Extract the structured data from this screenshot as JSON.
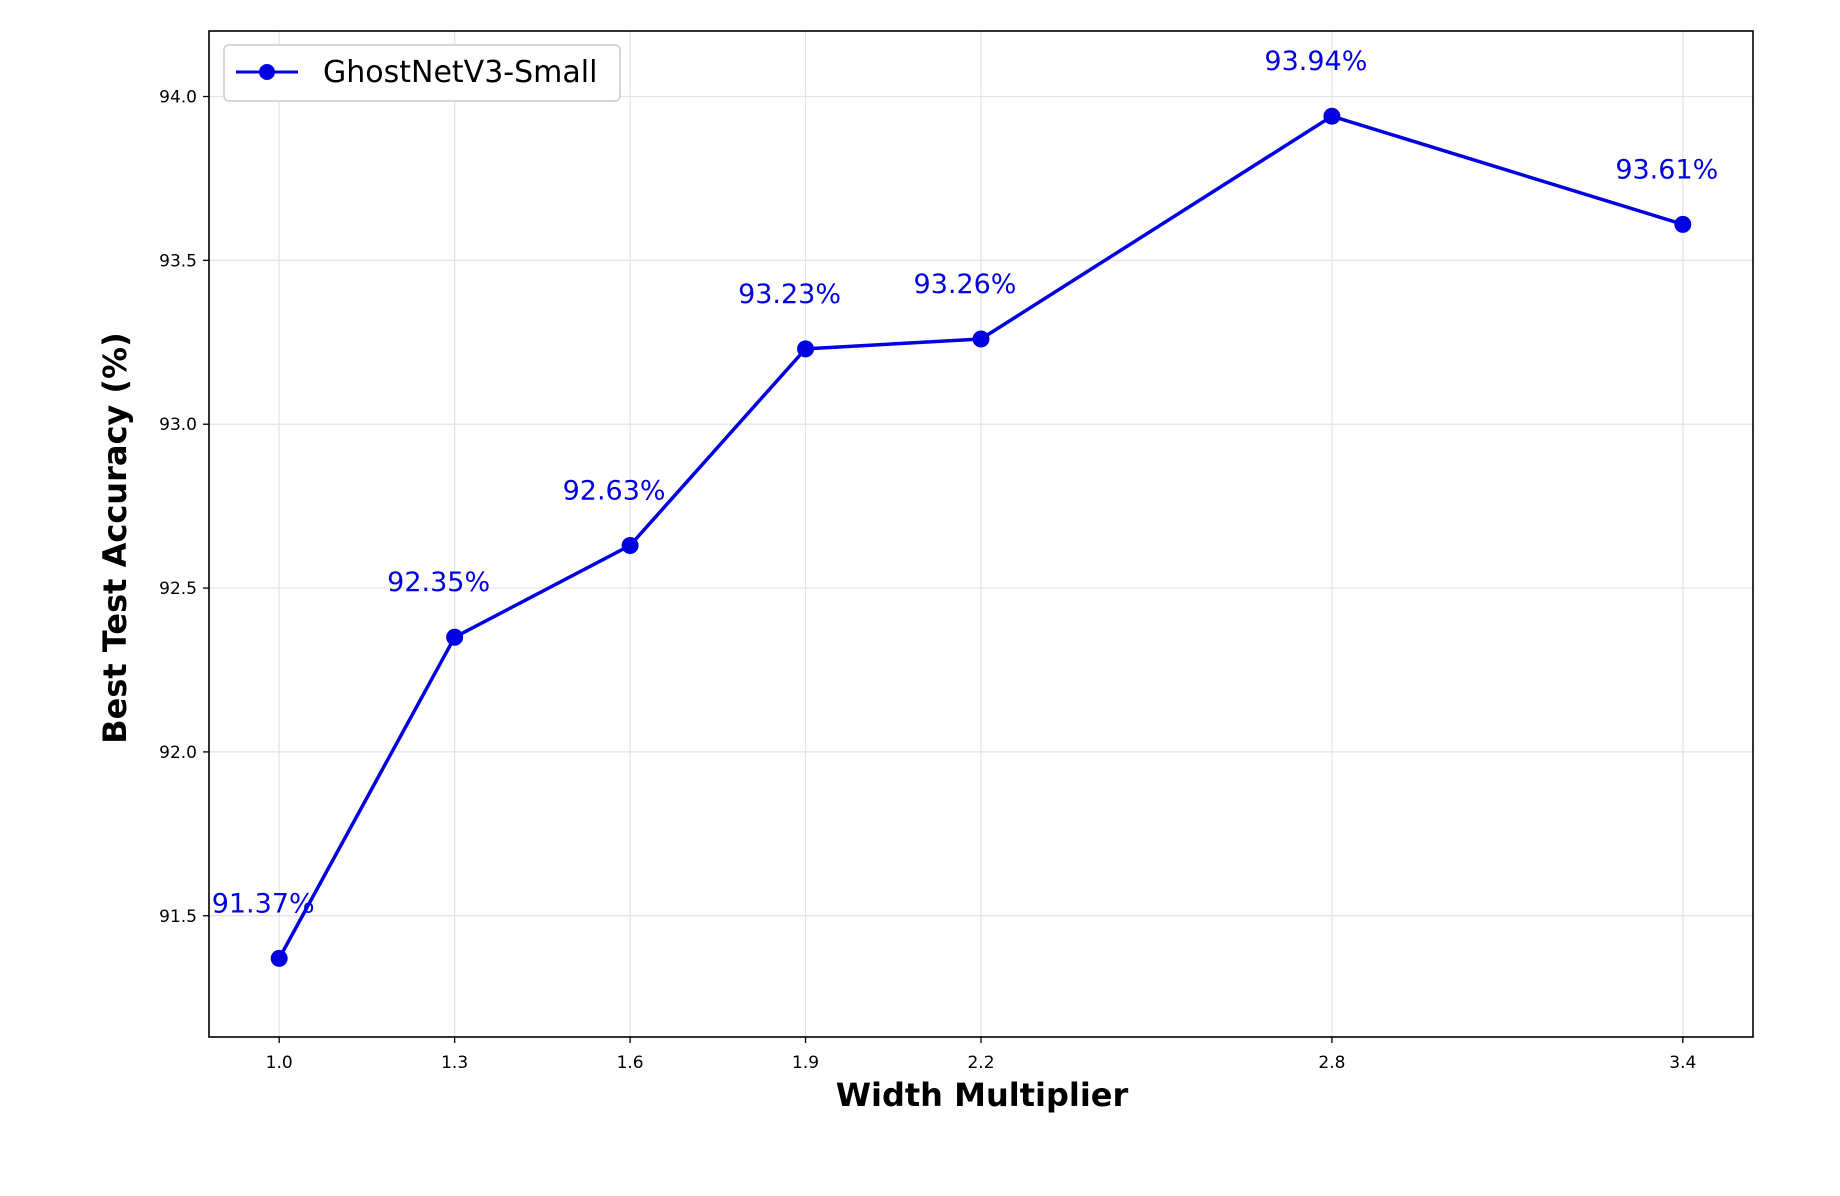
{
  "chart_data": {
    "type": "line",
    "xlabel": "Width Multiplier",
    "ylabel": "Best Test Accuracy (%)",
    "x_ticks": [
      "1.0",
      "1.3",
      "1.6",
      "1.9",
      "2.2",
      "2.8",
      "3.4"
    ],
    "y_ticks": [
      "91.5",
      "92.0",
      "92.5",
      "93.0",
      "93.5",
      "94.0"
    ],
    "xlim": [
      0.88,
      3.52
    ],
    "ylim": [
      91.13,
      94.2
    ],
    "grid": true,
    "legend_position": "top-left",
    "color": "#0000e0",
    "series": [
      {
        "name": "GhostNetV3-Small",
        "x": [
          1.0,
          1.3,
          1.6,
          1.9,
          2.2,
          2.8,
          3.4
        ],
        "y": [
          91.37,
          92.35,
          92.63,
          93.23,
          93.26,
          93.94,
          93.61
        ],
        "labels": [
          "91.37%",
          "92.35%",
          "92.63%",
          "93.23%",
          "93.26%",
          "93.94%",
          "93.61%"
        ]
      }
    ]
  }
}
